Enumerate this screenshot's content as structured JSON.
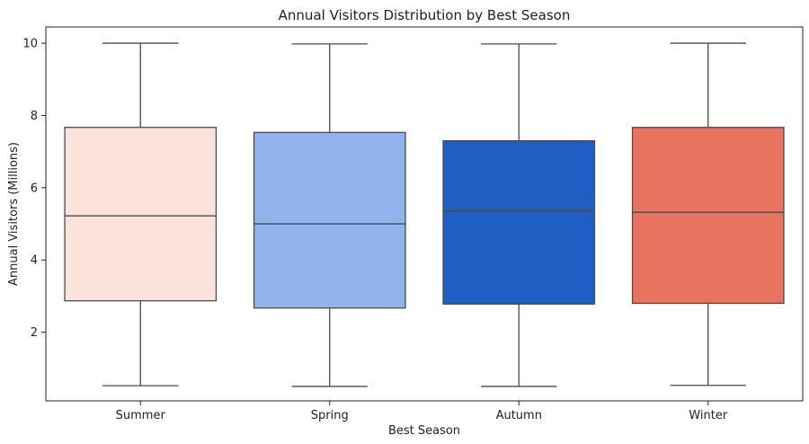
{
  "chart_data": {
    "type": "box",
    "title": "Annual Visitors Distribution by Best Season",
    "xlabel": "Best Season",
    "ylabel": "Annual Visitors (Millions)",
    "ylim": [
      0.1,
      10.45
    ],
    "yticks": [
      2,
      4,
      6,
      8,
      10
    ],
    "grid": false,
    "categories": [
      "Summer",
      "Spring",
      "Autumn",
      "Winter"
    ],
    "boxes": [
      {
        "category": "Summer",
        "min": 0.52,
        "q1": 2.87,
        "median": 5.22,
        "q3": 7.67,
        "max": 10.0,
        "color": "#FBE3DC"
      },
      {
        "category": "Spring",
        "min": 0.5,
        "q1": 2.67,
        "median": 5.0,
        "q3": 7.53,
        "max": 9.98,
        "color": "#93B3EC"
      },
      {
        "category": "Autumn",
        "min": 0.5,
        "q1": 2.78,
        "median": 5.36,
        "q3": 7.3,
        "max": 9.98,
        "color": "#1F5FC4"
      },
      {
        "category": "Winter",
        "min": 0.53,
        "q1": 2.8,
        "median": 5.32,
        "q3": 7.67,
        "max": 10.0,
        "color": "#E87460"
      }
    ]
  }
}
